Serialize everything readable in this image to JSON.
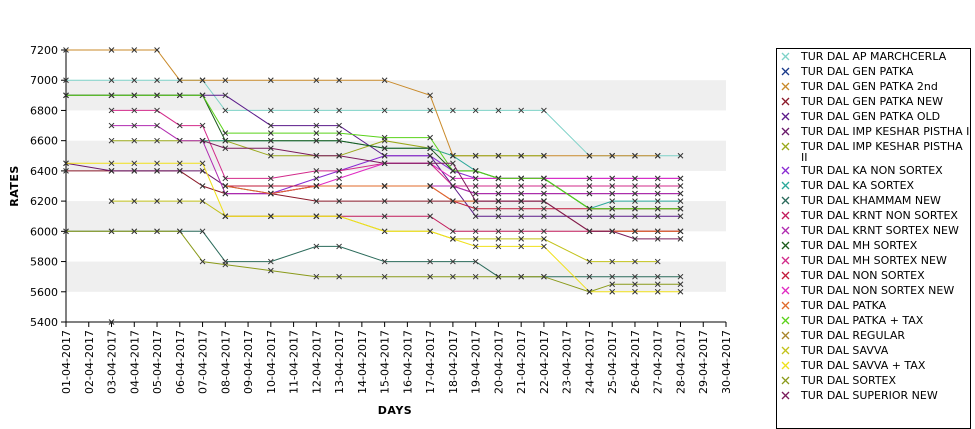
{
  "chart_data": {
    "type": "line",
    "title": "",
    "xlabel": "DAYS",
    "ylabel": "RATES",
    "ylim": [
      5400,
      7200
    ],
    "yticks": [
      5400,
      5600,
      5800,
      6000,
      6200,
      6400,
      6600,
      6800,
      7000,
      7200
    ],
    "categories": [
      "01-04-2017",
      "02-04-2017",
      "03-04-2017",
      "04-04-2017",
      "05-04-2017",
      "06-04-2017",
      "07-04-2017",
      "08-04-2017",
      "09-04-2017",
      "10-04-2017",
      "11-04-2017",
      "12-04-2017",
      "13-04-2017",
      "14-04-2017",
      "15-04-2017",
      "16-04-2017",
      "17-04-2017",
      "18-04-2017",
      "19-04-2017",
      "20-04-2017",
      "21-04-2017",
      "22-04-2017",
      "23-04-2017",
      "24-04-2017",
      "25-04-2017",
      "26-04-2017",
      "27-04-2017",
      "28-04-2017",
      "29-04-2017",
      "30-04-2017"
    ],
    "grid": "alternating horizontal bands",
    "legend_position": "right",
    "series": [
      {
        "name": "TUR DAL AP MARCHCERLA",
        "color": "#7ed2c8",
        "values": [
          7000,
          null,
          7000,
          7000,
          7000,
          7000,
          7000,
          6800,
          null,
          6800,
          null,
          6800,
          6800,
          null,
          6800,
          null,
          6800,
          6800,
          6800,
          6800,
          6800,
          6800,
          null,
          6500,
          6500,
          6500,
          6500,
          6500,
          null,
          null
        ]
      },
      {
        "name": "TUR DAL GEN PATKA",
        "color": "#1a3a8a",
        "values": [
          null,
          null,
          5400,
          null,
          null,
          null,
          null,
          null,
          null,
          null,
          null,
          null,
          null,
          null,
          null,
          null,
          null,
          null,
          null,
          null,
          null,
          null,
          null,
          null,
          null,
          null,
          null,
          null,
          null,
          null
        ]
      },
      {
        "name": "TUR DAL GEN PATKA 2nd",
        "color": "#c98a2a",
        "values": [
          7200,
          null,
          7200,
          7200,
          7200,
          7000,
          7000,
          7000,
          null,
          7000,
          null,
          7000,
          7000,
          null,
          7000,
          null,
          6900,
          6500,
          6500,
          6500,
          6500,
          6500,
          null,
          6500,
          6500,
          6500,
          6500,
          null,
          null,
          null
        ]
      },
      {
        "name": "TUR DAL GEN PATKA NEW",
        "color": "#8b1a2a",
        "values": [
          6400,
          null,
          6400,
          6400,
          6400,
          6400,
          6300,
          6250,
          null,
          6250,
          null,
          6200,
          6200,
          null,
          6200,
          null,
          6200,
          6200,
          6200,
          6200,
          6200,
          6200,
          null,
          6000,
          6000,
          6000,
          6000,
          6000,
          null,
          null
        ]
      },
      {
        "name": "TUR DAL GEN PATKA OLD",
        "color": "#5a1a8a",
        "values": [
          6900,
          null,
          6900,
          6900,
          6900,
          6900,
          6900,
          6900,
          null,
          6700,
          null,
          6700,
          6700,
          null,
          6500,
          null,
          6500,
          6300,
          6100,
          6100,
          6100,
          6100,
          null,
          6100,
          6100,
          6100,
          6100,
          6100,
          null,
          null
        ]
      },
      {
        "name": "TUR DAL IMP KESHAR PISTHA I",
        "color": "#6a1a6a",
        "values": [
          6450,
          null,
          6400,
          6400,
          6400,
          6400,
          6400,
          6300,
          null,
          6250,
          null,
          6300,
          6300,
          null,
          6300,
          null,
          6300,
          6300,
          6250,
          6250,
          6250,
          6250,
          null,
          6250,
          6250,
          6250,
          6250,
          6250,
          null,
          null
        ]
      },
      {
        "name": "TUR DAL IMP KESHAR PISTHA II",
        "color": "#9aa81a",
        "values": [
          null,
          null,
          6600,
          6600,
          6600,
          6600,
          6600,
          6600,
          null,
          6500,
          null,
          6500,
          6500,
          null,
          6600,
          null,
          6550,
          6500,
          6500,
          6500,
          6500,
          6500,
          null,
          null,
          null,
          null,
          null,
          null,
          null,
          null
        ]
      },
      {
        "name": "TUR DAL KA NON SORTEX",
        "color": "#8a2ad2",
        "values": [
          null,
          null,
          null,
          null,
          null,
          null,
          null,
          6250,
          null,
          6250,
          null,
          6350,
          6400,
          null,
          6500,
          null,
          6500,
          6400,
          6350,
          6350,
          6350,
          6350,
          null,
          6350,
          6350,
          6350,
          6350,
          6350,
          null,
          null
        ]
      },
      {
        "name": "TUR DAL KA SORTEX",
        "color": "#2aa89a",
        "values": [
          null,
          null,
          null,
          null,
          null,
          null,
          6600,
          6600,
          null,
          6600,
          null,
          6600,
          6600,
          null,
          6550,
          null,
          6550,
          6500,
          6400,
          6350,
          6350,
          6350,
          null,
          6150,
          6200,
          6200,
          6200,
          6200,
          null,
          null
        ]
      },
      {
        "name": "TUR DAL KHAMMAM NEW",
        "color": "#2a6a5a",
        "values": [
          6000,
          null,
          6000,
          6000,
          6000,
          6000,
          6000,
          5800,
          null,
          5800,
          null,
          5900,
          5900,
          null,
          5800,
          null,
          5800,
          5800,
          5800,
          5700,
          5700,
          5700,
          null,
          5700,
          5700,
          5700,
          5700,
          5700,
          null,
          null
        ]
      },
      {
        "name": "TUR DAL KRNT NON SORTEX",
        "color": "#c21a5a",
        "values": [
          null,
          null,
          null,
          null,
          null,
          null,
          null,
          6100,
          null,
          6100,
          null,
          6100,
          6100,
          null,
          6100,
          null,
          6100,
          6000,
          6000,
          6000,
          6000,
          6000,
          null,
          6000,
          6000,
          6000,
          6000,
          6000,
          null,
          null
        ]
      },
      {
        "name": "TUR DAL KRNT SORTEX NEW",
        "color": "#b02ab0",
        "values": [
          null,
          null,
          6700,
          6700,
          6700,
          6600,
          6600,
          6250,
          null,
          6250,
          null,
          6300,
          6300,
          null,
          6300,
          null,
          6300,
          6300,
          6250,
          6250,
          6250,
          6250,
          null,
          6250,
          6250,
          6250,
          6250,
          6250,
          null,
          null
        ]
      },
      {
        "name": "TUR DAL MH SORTEX",
        "color": "#1a5a1a",
        "values": [
          6900,
          null,
          6900,
          6900,
          6900,
          6900,
          6900,
          6600,
          null,
          6600,
          null,
          6600,
          6600,
          null,
          6550,
          null,
          6550,
          6400,
          6400,
          6350,
          6350,
          6350,
          null,
          6150,
          6150,
          6150,
          6150,
          6150,
          null,
          null
        ]
      },
      {
        "name": "TUR DAL MH SORTEX NEW",
        "color": "#d22a8a",
        "values": [
          null,
          null,
          6800,
          6800,
          6800,
          6700,
          6700,
          6350,
          null,
          6350,
          null,
          6400,
          6400,
          null,
          6450,
          null,
          6450,
          6300,
          6300,
          6300,
          6300,
          6300,
          null,
          6300,
          6300,
          6300,
          6300,
          6300,
          null,
          null
        ]
      },
      {
        "name": "TUR DAL NON SORTEX",
        "color": "#c21a3a",
        "values": [
          null,
          null,
          null,
          null,
          null,
          null,
          null,
          6300,
          null,
          6300,
          null,
          6300,
          6300,
          null,
          6300,
          null,
          6300,
          6200,
          6150,
          6150,
          6150,
          6150,
          null,
          6150,
          6150,
          6150,
          6150,
          6150,
          null,
          null
        ]
      },
      {
        "name": "TUR DAL NON SORTEX NEW",
        "color": "#e02ac2",
        "values": [
          null,
          null,
          null,
          null,
          null,
          null,
          null,
          null,
          null,
          6250,
          null,
          6300,
          6350,
          null,
          6450,
          null,
          6450,
          6350,
          6350,
          6350,
          6350,
          6350,
          null,
          6350,
          6350,
          6350,
          6350,
          6350,
          null,
          null
        ]
      },
      {
        "name": "TUR DAL PATKA",
        "color": "#e06a2a",
        "values": [
          null,
          null,
          null,
          null,
          null,
          null,
          null,
          6300,
          null,
          6250,
          null,
          6300,
          6300,
          null,
          6300,
          null,
          6300,
          6200,
          6200,
          6200,
          6200,
          6200,
          null,
          6000,
          6000,
          6000,
          6000,
          6000,
          null,
          null
        ]
      },
      {
        "name": "TUR DAL PATKA + TAX",
        "color": "#5ad21a",
        "values": [
          6900,
          null,
          6900,
          6900,
          6900,
          6900,
          6900,
          6650,
          null,
          6650,
          null,
          6650,
          6650,
          null,
          6620,
          null,
          6620,
          6400,
          6400,
          6350,
          6350,
          6350,
          null,
          6150,
          6150,
          6150,
          6150,
          6150,
          null,
          null
        ]
      },
      {
        "name": "TUR DAL REGULAR",
        "color": "#a8842a",
        "values": [
          null,
          null,
          null,
          null,
          null,
          null,
          null,
          null,
          null,
          null,
          null,
          null,
          null,
          null,
          null,
          null,
          null,
          null,
          null,
          null,
          null,
          null,
          null,
          null,
          null,
          null,
          null,
          null,
          null,
          null
        ]
      },
      {
        "name": "TUR DAL SAVVA",
        "color": "#c2c21a",
        "values": [
          null,
          null,
          6200,
          6200,
          6200,
          6200,
          6200,
          6100,
          null,
          6100,
          null,
          6100,
          6100,
          null,
          6000,
          null,
          6000,
          5950,
          5950,
          5950,
          5950,
          5950,
          null,
          5800,
          5800,
          5800,
          5800,
          null,
          null,
          null
        ]
      },
      {
        "name": "TUR DAL SAVVA + TAX",
        "color": "#f0e01a",
        "values": [
          6450,
          null,
          6450,
          6450,
          6450,
          6450,
          6450,
          6100,
          null,
          6100,
          null,
          6100,
          6100,
          null,
          6000,
          null,
          6000,
          5950,
          5900,
          5900,
          5900,
          5900,
          null,
          5600,
          5600,
          5600,
          5600,
          5600,
          null,
          null
        ]
      },
      {
        "name": "TUR DAL SORTEX",
        "color": "#8a9a1a",
        "values": [
          6000,
          null,
          6000,
          6000,
          6000,
          6000,
          5800,
          5780,
          null,
          5740,
          null,
          5700,
          5700,
          null,
          5700,
          null,
          5700,
          5700,
          5700,
          5700,
          5700,
          5700,
          null,
          5600,
          5650,
          5650,
          5650,
          5650,
          null,
          null
        ]
      },
      {
        "name": "TUR DAL SUPERIOR NEW",
        "color": "#7a1a5a",
        "values": [
          null,
          null,
          null,
          null,
          null,
          null,
          6600,
          6550,
          null,
          6550,
          null,
          6500,
          6500,
          null,
          6450,
          null,
          6450,
          6450,
          6200,
          6200,
          6200,
          6200,
          null,
          6000,
          6000,
          5950,
          5950,
          5950,
          null,
          null
        ]
      }
    ]
  }
}
